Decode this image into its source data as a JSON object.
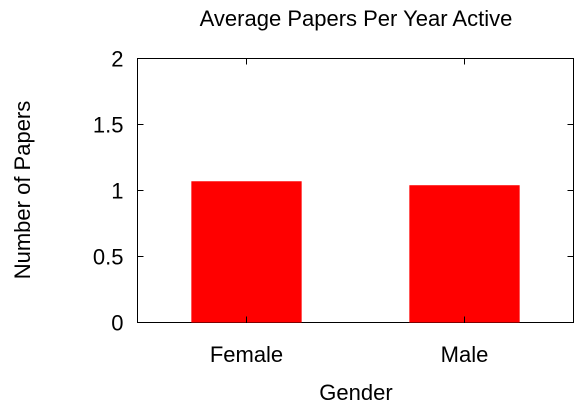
{
  "chart_data": {
    "type": "bar",
    "title": "Average Papers Per Year Active",
    "xlabel": "Gender",
    "ylabel": "Number of Papers",
    "categories": [
      "Female",
      "Male"
    ],
    "values": [
      1.07,
      1.04
    ],
    "ylim": [
      0,
      2
    ],
    "yticks": [
      0,
      0.5,
      1,
      1.5,
      2
    ],
    "ytick_labels": [
      "0",
      "0.5",
      "1",
      "1.5",
      "2"
    ],
    "bar_color": "#ff0000",
    "grid": false
  }
}
